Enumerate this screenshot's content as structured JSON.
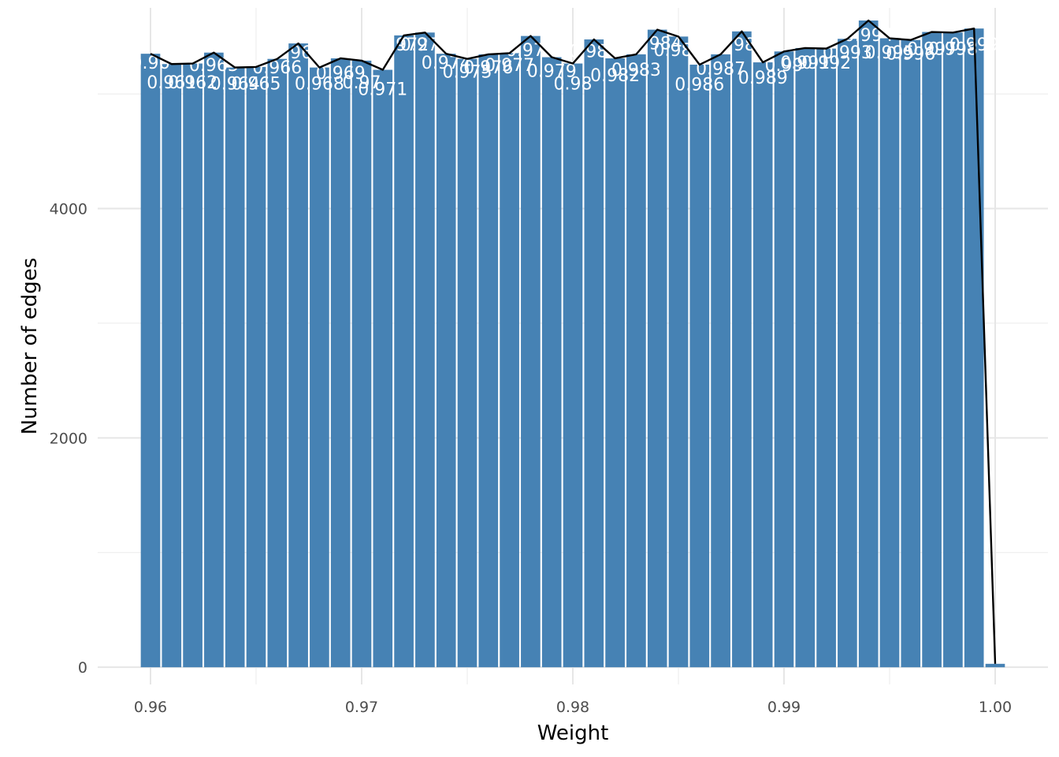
{
  "chart_data": {
    "type": "bar",
    "xlabel": "Weight",
    "ylabel": "Number of edges",
    "xlim": [
      0.9575,
      1.0025
    ],
    "ylim": [
      -150,
      5750
    ],
    "x_ticks": [
      0.96,
      0.97,
      0.98,
      0.99,
      1.0
    ],
    "x_tick_labels": [
      "0.96",
      "0.97",
      "0.98",
      "0.99",
      "1.00"
    ],
    "y_ticks": [
      0,
      2000,
      4000
    ],
    "y_tick_labels": [
      "0",
      "2000",
      "4000"
    ],
    "grid": true,
    "legend": "none",
    "bar_color": "#4682b4",
    "line_color": "#000000",
    "bar_width": 0.00092,
    "x": [
      0.96,
      0.961,
      0.962,
      0.963,
      0.964,
      0.965,
      0.966,
      0.967,
      0.968,
      0.969,
      0.97,
      0.971,
      0.972,
      0.973,
      0.974,
      0.975,
      0.976,
      0.977,
      0.978,
      0.979,
      0.98,
      0.981,
      0.982,
      0.983,
      0.984,
      0.985,
      0.986,
      0.987,
      0.988,
      0.989,
      0.99,
      0.991,
      0.992,
      0.993,
      0.994,
      0.995,
      0.996,
      0.997,
      0.998,
      0.999,
      1.0
    ],
    "values": [
      5350,
      5260,
      5265,
      5360,
      5230,
      5235,
      5305,
      5440,
      5230,
      5310,
      5290,
      5210,
      5510,
      5535,
      5350,
      5305,
      5345,
      5355,
      5505,
      5320,
      5265,
      5475,
      5310,
      5345,
      5560,
      5500,
      5255,
      5345,
      5545,
      5275,
      5370,
      5400,
      5395,
      5480,
      5640,
      5485,
      5470,
      5540,
      5535,
      5570,
      30
    ],
    "labels": [
      "0.96",
      "0.961",
      "0.962",
      "0.963",
      "0.964",
      "0.965",
      "0.966",
      "0.967",
      "0.968",
      "0.969",
      "0.97",
      "0.971",
      "0.972",
      "0.973",
      "0.974",
      "0.975",
      "0.976",
      "0.977",
      "0.978",
      "0.979",
      "0.98",
      "0.981",
      "0.982",
      "0.983",
      "0.984",
      "0.985",
      "0.986",
      "0.987",
      "0.988",
      "0.989",
      "0.99",
      "0.991",
      "0.992",
      "0.993",
      "0.994",
      "0.995",
      "0.996",
      "0.997",
      "0.998",
      "0.999"
    ],
    "label_values": [
      5220,
      5050,
      5050,
      5200,
      5040,
      5040,
      5180,
      5310,
      5040,
      5130,
      5050,
      4990,
      5380,
      5380,
      5220,
      5140,
      5180,
      5200,
      5330,
      5150,
      5040,
      5320,
      5110,
      5160,
      5390,
      5330,
      5030,
      5170,
      5380,
      5090,
      5200,
      5220,
      5220,
      5310,
      5460,
      5310,
      5300,
      5340,
      5340,
      5380
    ]
  }
}
